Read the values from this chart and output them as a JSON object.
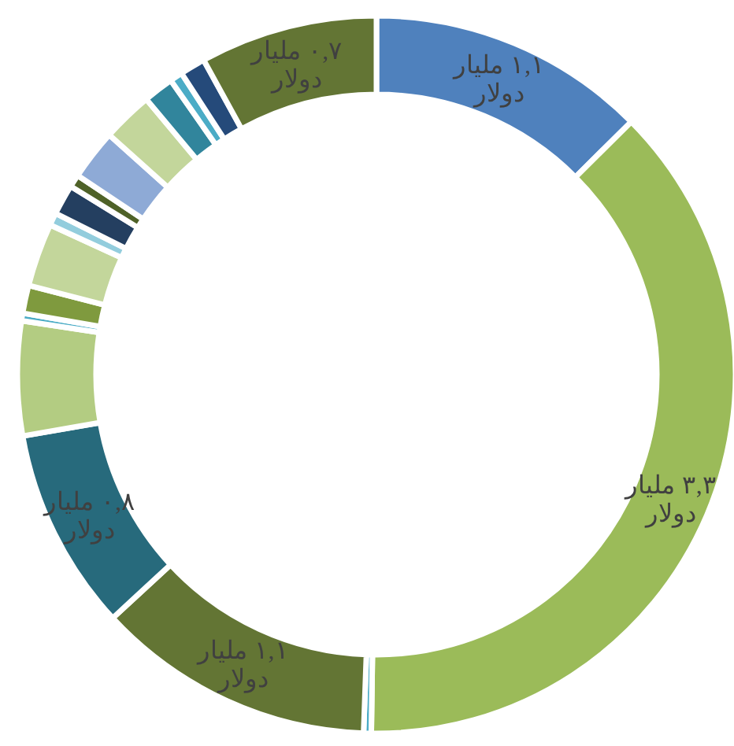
{
  "chart_data": {
    "type": "donut",
    "categories": [
      null,
      null,
      null,
      null,
      null,
      null,
      null,
      null,
      null,
      null,
      null,
      null,
      null,
      null,
      null,
      null,
      null,
      null
    ],
    "values": [
      1.1,
      3.3,
      0.03,
      1.1,
      0.8,
      0.45,
      0.03,
      0.11,
      0.25,
      0.05,
      0.12,
      0.05,
      0.2,
      0.2,
      0.12,
      0.05,
      0.1,
      0.7
    ],
    "colors": [
      "#4f81bd",
      "#9bbb59",
      "#4bacc6",
      "#637534",
      "#276a7c",
      "#b3cc82",
      "#4bacc6",
      "#7f9a3e",
      "#c3d69b",
      "#93cddd",
      "#243f60",
      "#4f6228",
      "#8eaad6",
      "#c3d69b",
      "#31859c",
      "#4bacc6",
      "#254a7a",
      "#637534"
    ],
    "value_labels": [
      "١,١ مليار دولار",
      "٣,٣ مليار دولار",
      null,
      "١,١ مليار دولار",
      "٠,٨ مليار دولار",
      null,
      null,
      null,
      null,
      null,
      null,
      null,
      null,
      null,
      null,
      null,
      null,
      "٠,٧ مليار دولار"
    ]
  }
}
